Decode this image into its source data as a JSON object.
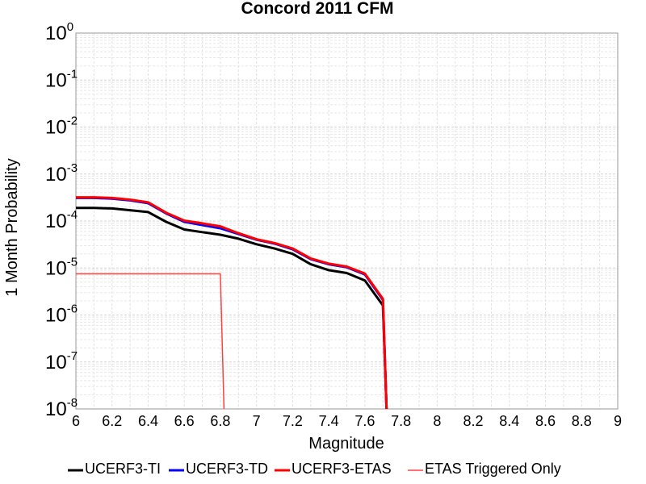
{
  "chart_data": {
    "type": "line",
    "title": "Concord 2011 CFM",
    "xlabel": "Magnitude",
    "ylabel": "1 Month Probability",
    "xlim": [
      6,
      9
    ],
    "ylim": [
      1e-08,
      1
    ],
    "yscale": "log",
    "grid": true,
    "legend_position": "bottom",
    "x_ticks": [
      "6",
      "6.2",
      "6.4",
      "6.6",
      "6.8",
      "7",
      "7.2",
      "7.4",
      "7.6",
      "7.8",
      "8",
      "8.2",
      "8.4",
      "8.6",
      "8.8",
      "9"
    ],
    "y_ticks": [
      {
        "base": "10",
        "exp": "0"
      },
      {
        "base": "10",
        "exp": "-1"
      },
      {
        "base": "10",
        "exp": "-2"
      },
      {
        "base": "10",
        "exp": "-3"
      },
      {
        "base": "10",
        "exp": "-4"
      },
      {
        "base": "10",
        "exp": "-5"
      },
      {
        "base": "10",
        "exp": "-6"
      },
      {
        "base": "10",
        "exp": "-7"
      },
      {
        "base": "10",
        "exp": "-8"
      }
    ],
    "series": [
      {
        "name": "UCERF3-TI",
        "color": "#000000",
        "line_width": 3,
        "x": [
          6.0,
          6.1,
          6.2,
          6.3,
          6.4,
          6.5,
          6.6,
          6.7,
          6.8,
          6.9,
          7.0,
          7.1,
          7.2,
          7.3,
          7.4,
          7.5,
          7.6,
          7.7,
          7.72
        ],
        "y": [
          0.00019,
          0.00019,
          0.000185,
          0.00017,
          0.000155,
          9.6e-05,
          6.6e-05,
          5.8e-05,
          5.1e-05,
          4.2e-05,
          3.2e-05,
          2.6e-05,
          2e-05,
          1.2e-05,
          9e-06,
          7.8e-06,
          5.4e-06,
          1.6e-06,
          1e-08
        ]
      },
      {
        "name": "UCERF3-TD",
        "color": "#0000ff",
        "line_width": 3,
        "x": [
          6.0,
          6.1,
          6.2,
          6.3,
          6.4,
          6.5,
          6.6,
          6.7,
          6.8,
          6.9,
          7.0,
          7.1,
          7.2,
          7.3,
          7.4,
          7.5,
          7.6,
          7.7,
          7.72
        ],
        "y": [
          0.00031,
          0.00031,
          0.0003,
          0.000275,
          0.00024,
          0.000145,
          9.6e-05,
          8.2e-05,
          7e-05,
          5.3e-05,
          4e-05,
          3.3e-05,
          2.5e-05,
          1.55e-05,
          1.2e-05,
          1.04e-05,
          7.3e-06,
          2.1e-06,
          1e-08
        ]
      },
      {
        "name": "UCERF3-ETAS",
        "color": "#ff0000",
        "line_width": 3,
        "x": [
          6.0,
          6.1,
          6.2,
          6.3,
          6.4,
          6.5,
          6.6,
          6.7,
          6.8,
          6.9,
          7.0,
          7.1,
          7.2,
          7.3,
          7.4,
          7.5,
          7.6,
          7.7,
          7.72
        ],
        "y": [
          0.00032,
          0.00032,
          0.00031,
          0.000285,
          0.00025,
          0.00015,
          0.000102,
          8.9e-05,
          7.7e-05,
          5.5e-05,
          4.1e-05,
          3.4e-05,
          2.6e-05,
          1.6e-05,
          1.24e-05,
          1.07e-05,
          7.6e-06,
          2.2e-06,
          1e-08
        ]
      },
      {
        "name": "ETAS Triggered Only",
        "color": "#ff4040",
        "line_width": 1.5,
        "x": [
          6.0,
          6.8,
          6.82
        ],
        "y": [
          7.5e-06,
          7.5e-06,
          1e-08
        ]
      }
    ]
  }
}
